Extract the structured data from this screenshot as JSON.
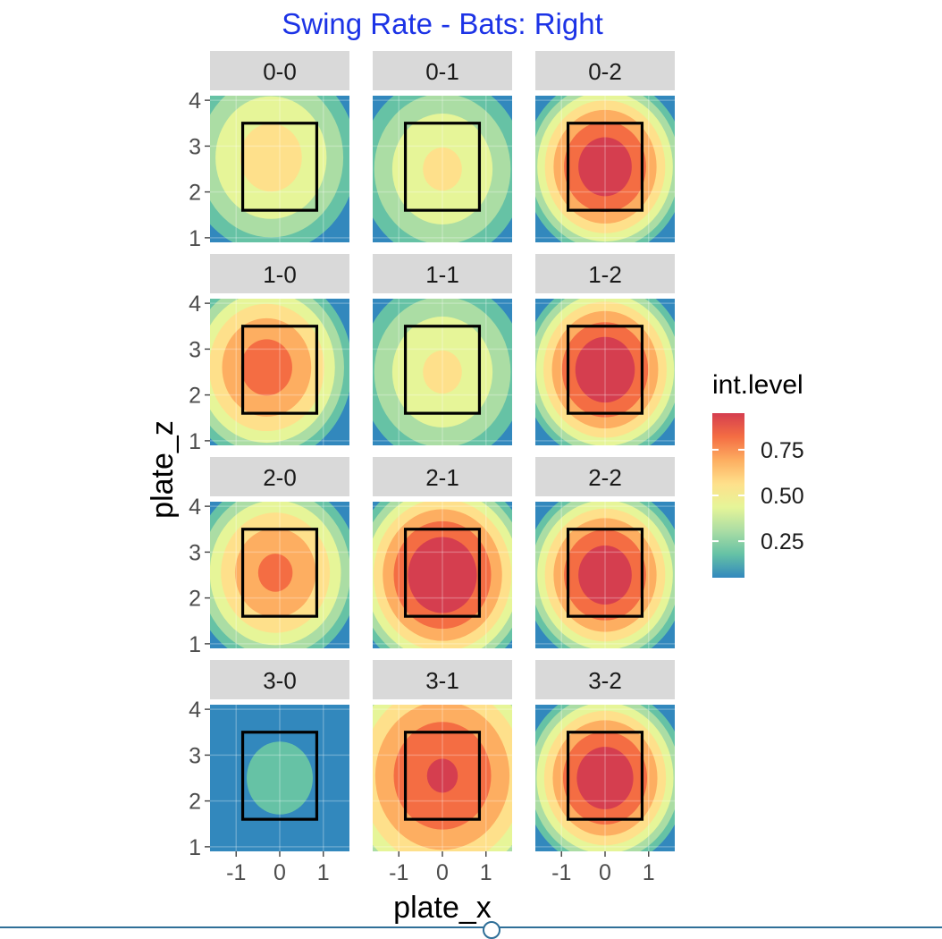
{
  "chart_data": {
    "type": "heatmap",
    "title": "Swing Rate - Bats: Right",
    "xlabel": "plate_x",
    "ylabel": "plate_z",
    "xlim": [
      -1.6,
      1.6
    ],
    "ylim": [
      0.9,
      4.1
    ],
    "x_ticks": [
      -1,
      0,
      1
    ],
    "y_ticks": [
      1,
      2,
      3,
      4
    ],
    "grid": true,
    "strike_zone": {
      "x": [
        -0.85,
        0.85
      ],
      "z": [
        1.6,
        3.5
      ]
    },
    "legend": {
      "title": "int.level",
      "position": "right",
      "ticks": [
        0.25,
        0.5,
        0.75
      ],
      "range": [
        0.05,
        0.95
      ],
      "colors": [
        "#3288bd",
        "#66c2a5",
        "#abdda4",
        "#e6f598",
        "#fee08b",
        "#fdae61",
        "#f46d43",
        "#d53e4f"
      ]
    },
    "panels": [
      {
        "count": "0-0",
        "peak_x": -0.2,
        "peak_z": 2.75,
        "peak_level": 0.55,
        "decay": 0.1
      },
      {
        "count": "0-1",
        "peak_x": 0.0,
        "peak_z": 2.5,
        "peak_level": 0.52,
        "decay": 0.1
      },
      {
        "count": "0-2",
        "peak_x": 0.0,
        "peak_z": 2.55,
        "peak_level": 0.92,
        "decay": 0.22
      },
      {
        "count": "1-0",
        "peak_x": -0.3,
        "peak_z": 2.6,
        "peak_level": 0.78,
        "decay": 0.16
      },
      {
        "count": "1-1",
        "peak_x": 0.0,
        "peak_z": 2.5,
        "peak_level": 0.52,
        "decay": 0.1
      },
      {
        "count": "1-2",
        "peak_x": 0.0,
        "peak_z": 2.55,
        "peak_level": 0.94,
        "decay": 0.22
      },
      {
        "count": "2-0",
        "peak_x": -0.1,
        "peak_z": 2.55,
        "peak_level": 0.75,
        "decay": 0.16
      },
      {
        "count": "2-1",
        "peak_x": 0.0,
        "peak_z": 2.5,
        "peak_level": 0.95,
        "decay": 0.18
      },
      {
        "count": "2-2",
        "peak_x": 0.0,
        "peak_z": 2.5,
        "peak_level": 0.92,
        "decay": 0.22
      },
      {
        "count": "3-0",
        "peak_x": 0.0,
        "peak_z": 2.5,
        "peak_level": 0.22,
        "decay": 0.1
      },
      {
        "count": "3-1",
        "peak_x": 0.0,
        "peak_z": 2.55,
        "peak_level": 0.85,
        "decay": 0.1
      },
      {
        "count": "3-2",
        "peak_x": 0.0,
        "peak_z": 2.5,
        "peak_level": 0.93,
        "decay": 0.22
      }
    ]
  }
}
